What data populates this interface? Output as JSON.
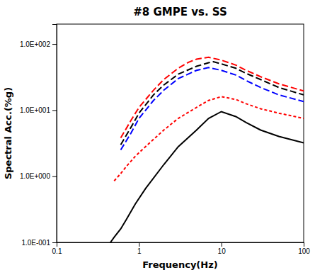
{
  "chart_data": {
    "type": "line",
    "title": "#8 GMPE vs. SS",
    "xlabel": "Frequency(Hz)",
    "ylabel": "Spectral Acc.(%g)",
    "log": true,
    "grid": false,
    "xlim": [
      0.1,
      100
    ],
    "ylim": [
      0.1,
      200
    ],
    "xticks": [
      0.1,
      1.0,
      10.0,
      100.0
    ],
    "yticks": [
      {
        "value": 0.1,
        "label": "1.0E-001"
      },
      {
        "value": 1.0,
        "label": "1.0E+000"
      },
      {
        "value": 10.0,
        "label": "1.0E+001"
      },
      {
        "value": 100.0,
        "label": "1.0E+002"
      }
    ],
    "series": [
      {
        "color": "#000000",
        "line_style": "solid",
        "x": [
          0.45,
          0.5,
          0.6,
          0.7,
          0.9,
          1.2,
          2.0,
          3.0,
          5.0,
          7.0,
          10.0,
          15.0,
          20.0,
          30.0,
          50.0,
          100.0
        ],
        "values": [
          0.1,
          0.12,
          0.16,
          0.22,
          0.38,
          0.65,
          1.5,
          2.8,
          5.0,
          7.5,
          9.5,
          8.0,
          6.5,
          5.0,
          4.0,
          3.2
        ]
      },
      {
        "color": "#ff0000",
        "line_style": "dotted",
        "x": [
          0.5,
          0.6,
          0.7,
          0.9,
          1.2,
          2.0,
          3.0,
          5.0,
          7.0,
          10.0,
          15.0,
          20.0,
          30.0,
          50.0,
          100.0
        ],
        "values": [
          0.85,
          1.1,
          1.4,
          2.0,
          2.8,
          5.0,
          7.5,
          11.0,
          14.0,
          16.0,
          14.5,
          12.5,
          10.5,
          9.0,
          7.5
        ]
      },
      {
        "color": "#0000ff",
        "line_style": "dashed",
        "x": [
          0.6,
          0.8,
          1.0,
          1.5,
          2.0,
          3.0,
          5.0,
          7.0,
          10.0,
          15.0,
          20.0,
          30.0,
          50.0,
          100.0
        ],
        "values": [
          2.5,
          4.5,
          7.5,
          14.0,
          20.0,
          30.0,
          40.0,
          44.0,
          40.0,
          34.0,
          28.0,
          22.0,
          17.0,
          13.5
        ]
      },
      {
        "color": "#000000",
        "line_style": "dashed",
        "x": [
          0.6,
          0.8,
          1.0,
          1.5,
          2.0,
          3.0,
          5.0,
          7.0,
          8.0,
          10.0,
          15.0,
          20.0,
          30.0,
          50.0,
          100.0
        ],
        "values": [
          3.0,
          5.5,
          9.0,
          17.0,
          24.0,
          35.0,
          46.0,
          52.0,
          54.0,
          50.0,
          43.0,
          36.0,
          29.0,
          22.0,
          17.0
        ]
      },
      {
        "color": "#ff0000",
        "line_style": "dashed",
        "x": [
          0.6,
          0.8,
          1.0,
          1.5,
          2.0,
          3.0,
          4.0,
          5.0,
          7.0,
          10.0,
          15.0,
          20.0,
          30.0,
          50.0,
          100.0
        ],
        "values": [
          3.8,
          7.0,
          11.0,
          20.0,
          29.0,
          43.0,
          53.0,
          59.0,
          63.0,
          57.0,
          48.0,
          40.0,
          32.0,
          25.0,
          19.5
        ]
      }
    ]
  }
}
